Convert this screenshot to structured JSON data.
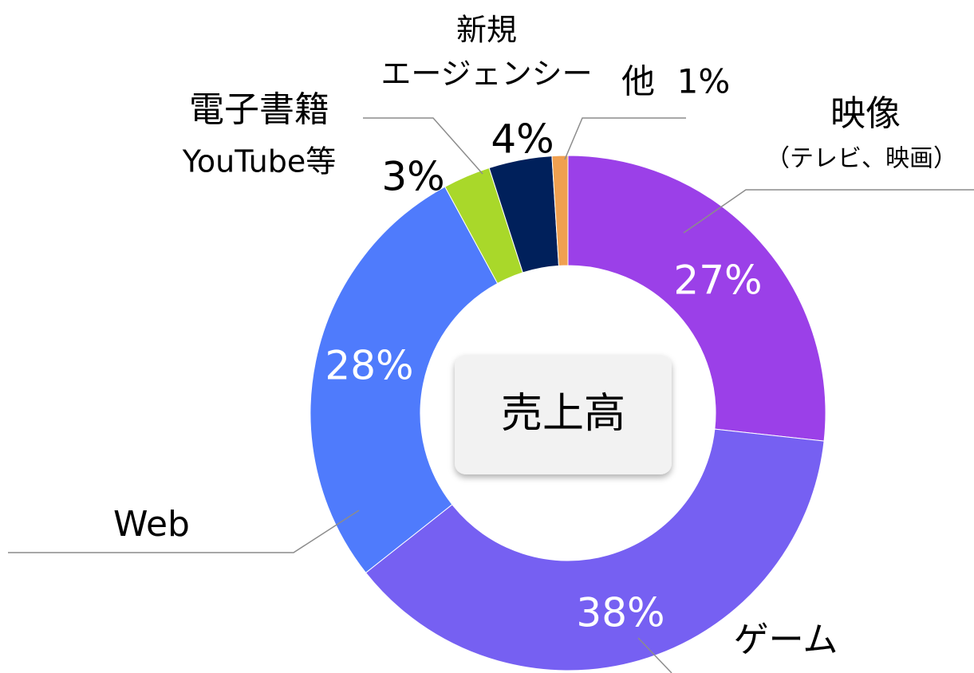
{
  "chart_data": {
    "type": "pie",
    "donut": true,
    "center_label": "売上高",
    "categories": [
      "映像",
      "ゲーム",
      "Web",
      "電子書籍",
      "新規",
      "他"
    ],
    "category_notes": [
      "（テレビ、映画）",
      null,
      null,
      "YouTube等",
      "エージェンシー",
      null
    ],
    "values": [
      27,
      38,
      28,
      3,
      4,
      1
    ],
    "value_labels": [
      "27%",
      "38%",
      "28%",
      "3%",
      "4%",
      "1%"
    ],
    "colors": [
      "#9b40e8",
      "#7660f2",
      "#4f7bfc",
      "#a9d82a",
      "#00205b",
      "#f0a050"
    ]
  }
}
